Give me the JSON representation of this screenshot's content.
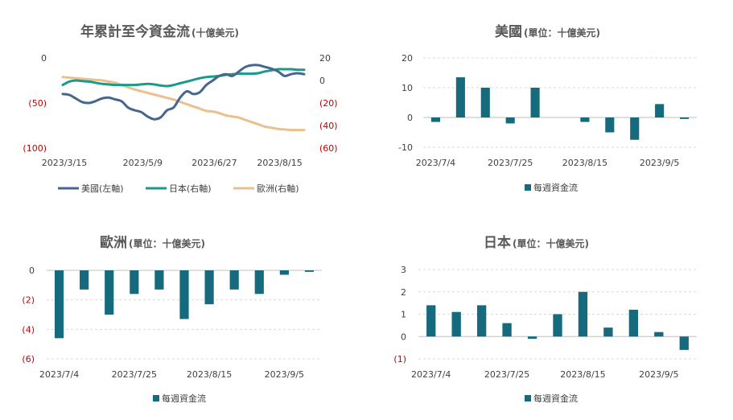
{
  "colors": {
    "us": "#44668f",
    "japan": "#1a9a8a",
    "europe": "#ebc08c",
    "bar": "#156b7d",
    "negative_tick": "#c00000"
  },
  "chart_data": [
    {
      "id": "cumulative",
      "type": "line",
      "title": "年累計至今資金流",
      "subtitle": "(十億美元)",
      "x_ticks": [
        "2023/3/15",
        "2023/5/9",
        "2023/6/27",
        "2023/8/15"
      ],
      "left_axis": {
        "ticks": [
          "0",
          "(50)",
          "(100)"
        ],
        "values": [
          0,
          -50,
          -100
        ],
        "ylim": [
          -100,
          0
        ]
      },
      "right_axis": {
        "ticks": [
          "20",
          "0",
          "(20)",
          "(40)",
          "(60)"
        ],
        "values": [
          20,
          0,
          -20,
          -40,
          -60
        ],
        "ylim": [
          -60,
          20
        ]
      },
      "x_range": [
        0,
        37
      ],
      "x_tick_positions": [
        0,
        12,
        23,
        33
      ],
      "series": [
        {
          "name": "美國(左軸)",
          "axis": "left",
          "color_key": "us",
          "values": [
            -40,
            -41,
            -45,
            -49,
            -50,
            -48,
            -45,
            -44,
            -46,
            -48,
            -55,
            -58,
            -60,
            -65,
            -68,
            -66,
            -58,
            -55,
            -44,
            -37,
            -40,
            -38,
            -30,
            -25,
            -20,
            -18,
            -20,
            -15,
            -10,
            -8,
            -8,
            -10,
            -12,
            -15,
            -20,
            -18,
            -17,
            -18
          ]
        },
        {
          "name": "日本(右軸)",
          "axis": "right",
          "color_key": "japan",
          "values": [
            -4,
            -1,
            0,
            -0.5,
            -1,
            -2,
            -3,
            -3.5,
            -4,
            -4,
            -4,
            -4,
            -3.5,
            -3,
            -3.5,
            -4.5,
            -5,
            -4,
            -2.5,
            -1,
            0.5,
            2,
            3,
            3.5,
            4,
            5,
            5.5,
            6,
            6,
            6,
            6.5,
            8,
            9,
            10,
            10,
            10,
            9.5,
            9.5
          ]
        },
        {
          "name": "歐洲(右軸)",
          "axis": "right",
          "color_key": "europe",
          "values": [
            3,
            2.5,
            2,
            1.5,
            1,
            0.5,
            0,
            -1,
            -2,
            -4,
            -6,
            -8,
            -9.5,
            -11,
            -12.5,
            -14,
            -15.5,
            -17,
            -19,
            -21,
            -23,
            -25,
            -27,
            -27.5,
            -29,
            -31,
            -32,
            -33,
            -35,
            -37,
            -39,
            -41,
            -42,
            -43,
            -43.5,
            -44,
            -44,
            -44
          ]
        }
      ],
      "legend_position": "bottom"
    },
    {
      "id": "us",
      "type": "bar",
      "title": "美國",
      "subtitle": "(單位：十億美元)",
      "x_ticks": [
        "2023/7/4",
        "2023/7/25",
        "2023/8/15",
        "2023/9/5"
      ],
      "x_tick_positions": [
        0,
        3,
        6,
        9
      ],
      "y_ticks": [
        "20",
        "10",
        "0",
        "-10"
      ],
      "y_tick_values": [
        20,
        10,
        0,
        -10
      ],
      "ylim": [
        -10,
        20
      ],
      "values": [
        -1.5,
        13.5,
        10,
        -2,
        10,
        0,
        -1.5,
        -5,
        -7.5,
        4.5,
        -0.5
      ],
      "legend": "每週資金流",
      "legend_position": "bottom"
    },
    {
      "id": "europe",
      "type": "bar",
      "title": "歐洲",
      "subtitle": "(單位：十億美元)",
      "x_ticks": [
        "2023/7/4",
        "2023/7/25",
        "2023/8/15",
        "2023/9/5"
      ],
      "x_tick_positions": [
        0,
        3,
        6,
        9
      ],
      "y_ticks": [
        "0",
        "(2)",
        "(4)",
        "(6)"
      ],
      "y_tick_values": [
        0,
        -2,
        -4,
        -6
      ],
      "ylim": [
        -6,
        0
      ],
      "values": [
        -4.6,
        -1.3,
        -3.0,
        -1.6,
        -1.3,
        -3.3,
        -2.3,
        -1.3,
        -1.6,
        -0.3,
        -0.1
      ],
      "legend": "每週資金流",
      "legend_position": "bottom"
    },
    {
      "id": "japan",
      "type": "bar",
      "title": "日本",
      "subtitle": "(單位：十億美元)",
      "x_ticks": [
        "2023/7/4",
        "2023/7/25",
        "2023/8/15",
        "2023/9/5"
      ],
      "x_tick_positions": [
        0,
        3,
        6,
        9
      ],
      "y_ticks": [
        "3",
        "2",
        "1",
        "0",
        "(1)"
      ],
      "y_tick_values": [
        3,
        2,
        1,
        0,
        -1
      ],
      "ylim": [
        -1,
        3
      ],
      "values": [
        1.4,
        1.1,
        1.4,
        0.6,
        -0.1,
        1.0,
        2.0,
        0.4,
        1.2,
        0.2,
        -0.6
      ],
      "legend": "每週資金流",
      "legend_position": "bottom"
    }
  ]
}
